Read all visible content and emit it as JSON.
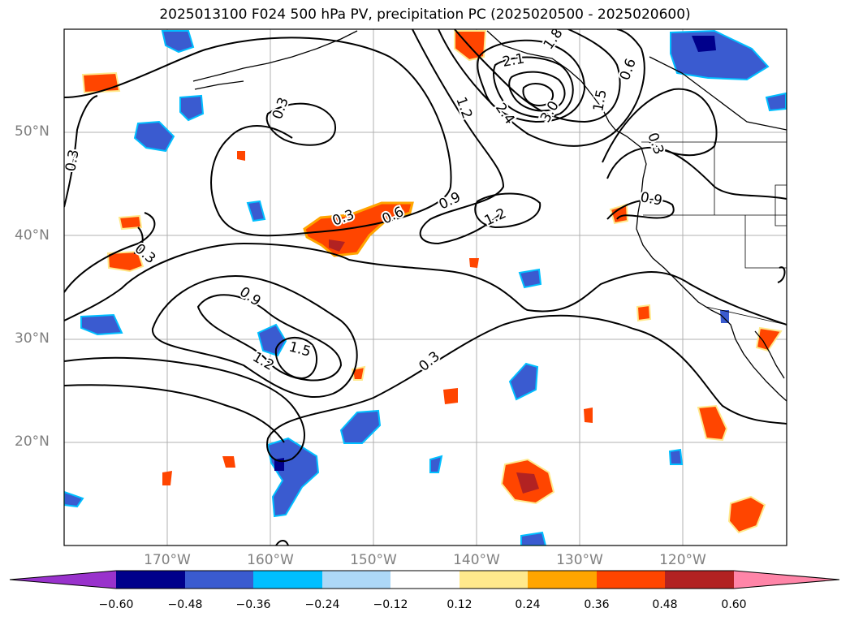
{
  "title": "2025013100 F024 500 hPa PV, precipitation PC (2025020500 - 2025020600)",
  "map": {
    "lat_labels": [
      "50°N",
      "40°N",
      "30°N",
      "20°N"
    ],
    "lon_labels": [
      "170°W",
      "160°W",
      "150°W",
      "140°W",
      "130°W",
      "120°W"
    ],
    "extent": {
      "lon_min": -180,
      "lon_max": -110,
      "lat_min": 10,
      "lat_max": 60
    },
    "gridlines": true
  },
  "contour_labels": [
    "0.3",
    "0.3",
    "0.3",
    "0.3",
    "0.3",
    "0.3",
    "0.6",
    "0.6",
    "0.9",
    "0.9",
    "0.9",
    "1.2",
    "1.2",
    "1.2",
    "1.5",
    "1.5",
    "1.8",
    "2.1",
    "2.4",
    "3.0"
  ],
  "colorbar": {
    "ticks": [
      "−0.60",
      "−0.48",
      "−0.36",
      "−0.24",
      "−0.12",
      "0.12",
      "0.24",
      "0.36",
      "0.48",
      "0.60"
    ],
    "colors": [
      "#9932cc",
      "#00008b",
      "#3a5bd0",
      "#00bfff",
      "#add8f7",
      "#ffffff",
      "#ffe98c",
      "#ffa500",
      "#ff4500",
      "#b22222",
      "#ff85a8"
    ]
  }
}
